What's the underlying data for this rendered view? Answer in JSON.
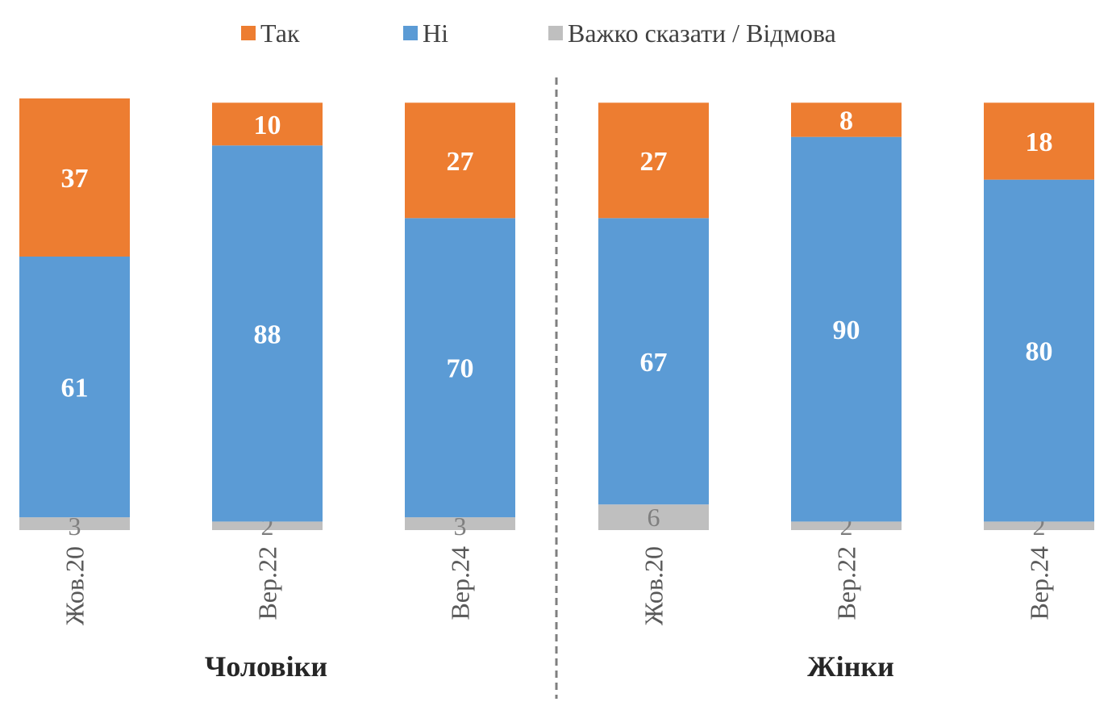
{
  "colors": {
    "tak": "#ED7D31",
    "ni": "#5B9BD5",
    "vazhko": "#BFBFBF",
    "divider": "#7f7f7f"
  },
  "chart_data": {
    "type": "bar",
    "stacked": true,
    "legend_position": "top",
    "grid": false,
    "ylim": [
      0,
      101
    ],
    "groups": [
      "Чоловіки",
      "Жінки"
    ],
    "categories": [
      "Жов.20",
      "Вер.22",
      "Вер.24",
      "Жов.20",
      "Вер.22",
      "Вер.24"
    ],
    "category_group": [
      0,
      0,
      0,
      1,
      1,
      1
    ],
    "series": [
      {
        "name": "Важко сказати / Відмова",
        "key": "vazhko",
        "values": [
          3,
          2,
          3,
          6,
          2,
          2
        ]
      },
      {
        "name": "Ні",
        "key": "ni",
        "values": [
          61,
          88,
          70,
          67,
          90,
          80
        ]
      },
      {
        "name": "Так",
        "key": "tak",
        "values": [
          37,
          10,
          27,
          27,
          8,
          18
        ]
      }
    ],
    "legend_order": [
      "tak",
      "ni",
      "vazhko"
    ]
  }
}
